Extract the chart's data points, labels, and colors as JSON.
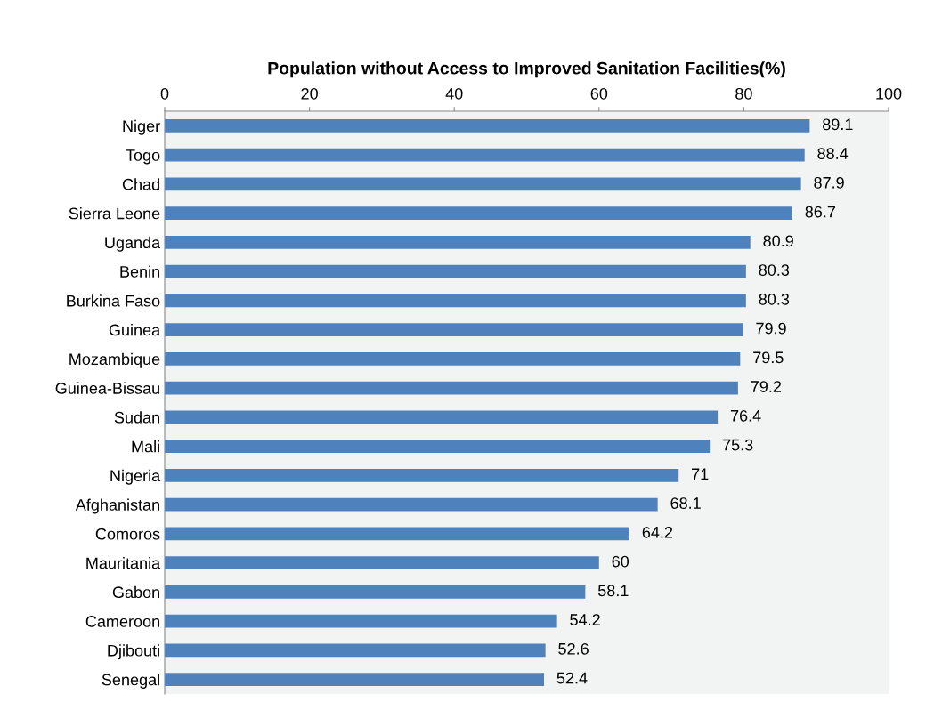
{
  "chart_data": {
    "type": "bar",
    "orientation": "horizontal",
    "title": "Population without Access to Improved Sanitation Facilities(%)",
    "categories": [
      "Niger",
      "Togo",
      "Chad",
      "Sierra Leone",
      "Uganda",
      "Benin",
      "Burkina Faso",
      "Guinea",
      "Mozambique",
      "Guinea-Bissau",
      "Sudan",
      "Mali",
      "Nigeria",
      "Afghanistan",
      "Comoros",
      "Mauritania",
      "Gabon",
      "Cameroon",
      "Djibouti",
      "Senegal"
    ],
    "values": [
      89.1,
      88.4,
      87.9,
      86.7,
      80.9,
      80.3,
      80.3,
      79.9,
      79.5,
      79.2,
      76.4,
      75.3,
      71,
      68.1,
      64.2,
      60,
      58.1,
      54.2,
      52.6,
      52.4
    ],
    "color": "#4f81bd",
    "xlim": [
      0,
      100
    ],
    "xticks": [
      0,
      20,
      40,
      60,
      80,
      100
    ],
    "data_labels": true,
    "grid": false
  }
}
